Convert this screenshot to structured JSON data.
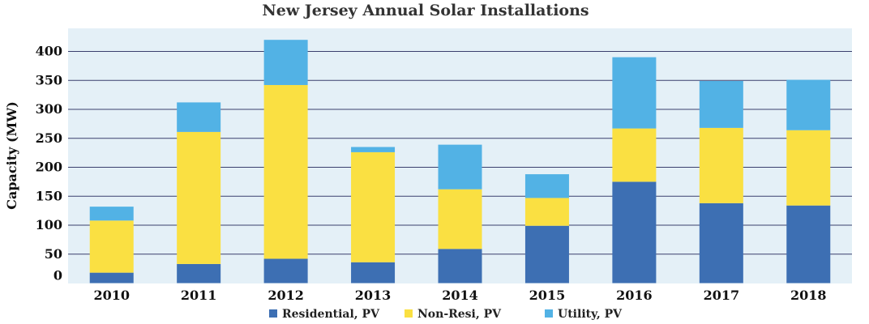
{
  "chart_data": {
    "type": "bar",
    "stacked": true,
    "title": "New Jersey Annual Solar Installations",
    "xlabel": "",
    "ylabel": "Capacity (MW)",
    "categories": [
      "2010",
      "2011",
      "2012",
      "2013",
      "2014",
      "2015",
      "2016",
      "2017",
      "2018"
    ],
    "yticks": [
      "0",
      "50",
      "100",
      "150",
      "200",
      "250",
      "300",
      "350",
      "400"
    ],
    "ylim": [
      0,
      430
    ],
    "grid": true,
    "legend_position": "bottom",
    "series": [
      {
        "name": "Residential, PV",
        "color": "#3d6fb3",
        "values": [
          18,
          33,
          42,
          36,
          59,
          99,
          175,
          138,
          134
        ]
      },
      {
        "name": "Non-Resi, PV",
        "color": "#fae042",
        "values": [
          90,
          228,
          300,
          190,
          103,
          48,
          92,
          130,
          130
        ]
      },
      {
        "name": "Utility, PV",
        "color": "#52b2e5",
        "values": [
          24,
          51,
          78,
          9,
          77,
          41,
          123,
          81,
          87
        ]
      }
    ],
    "plot_background": "#e4f0f7",
    "gridline_color": "#3a3f6e"
  }
}
